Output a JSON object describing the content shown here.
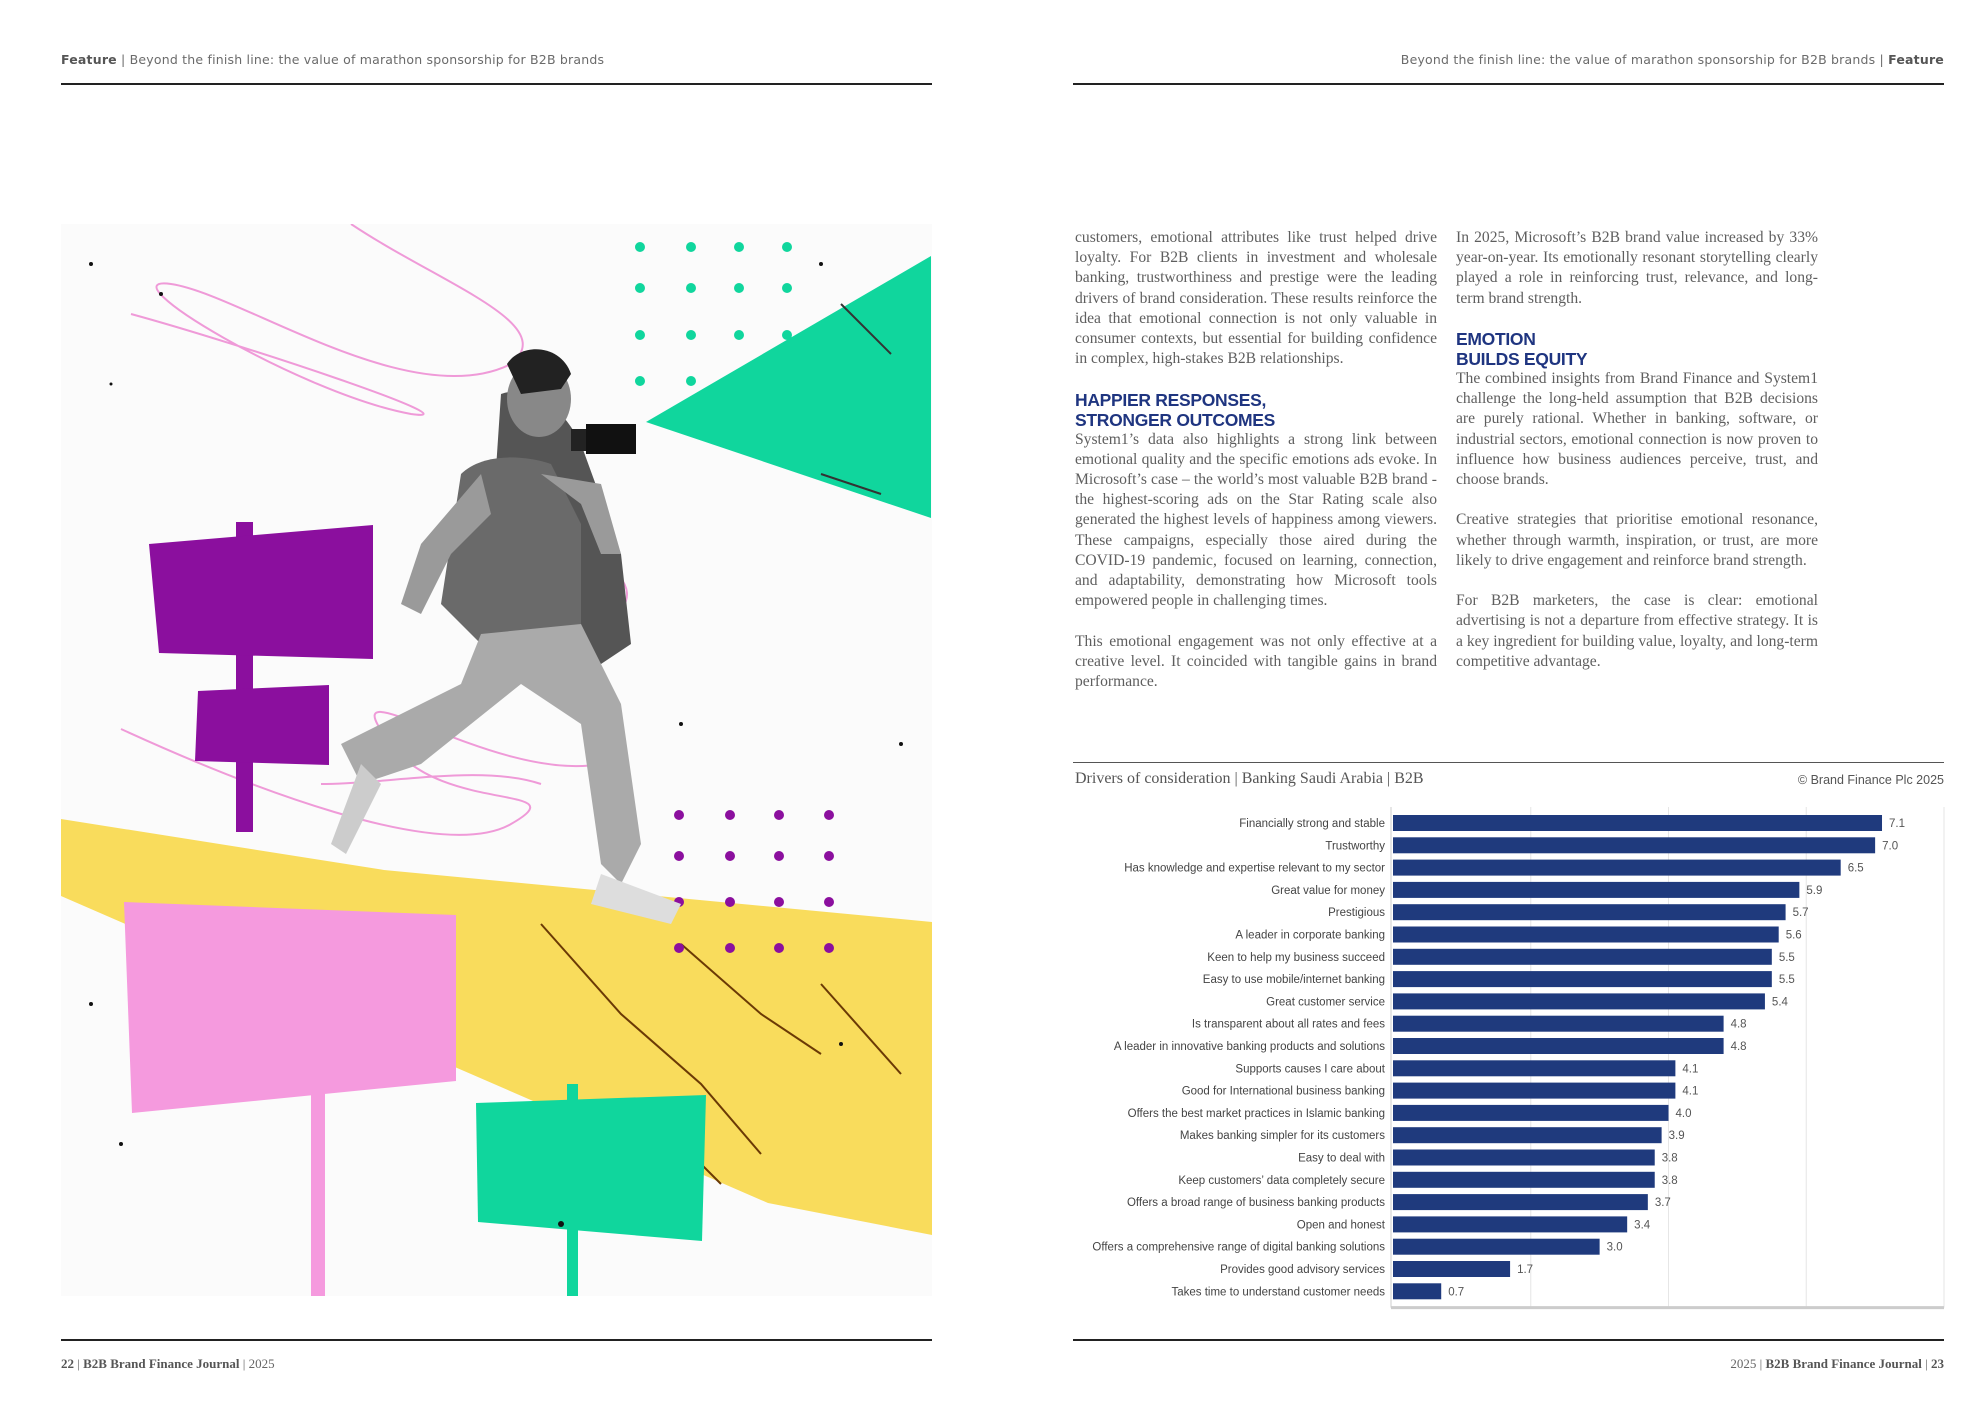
{
  "left_page": {
    "header": {
      "section": "Feature",
      "title": "Beyond the finish line: the value of marathon sponsorship for B2B brands"
    },
    "footer": {
      "page_number": "22",
      "journal": "B2B Brand Finance Journal",
      "year": "2025"
    }
  },
  "right_page": {
    "header": {
      "section": "Feature",
      "title": "Beyond the finish line: the value of marathon sponsorship for B2B brands"
    },
    "footer": {
      "page_number": "23",
      "journal": "B2B Brand Finance Journal",
      "year": "2025"
    },
    "column1": {
      "p1": "customers, emotional attributes like trust helped drive loyalty. For B2B clients in investment and wholesale banking, trustworthiness and prestige were the leading drivers of brand consideration. These results reinforce the idea that emotional connection is not only valuable in consumer contexts, but essential for building confidence in complex, high-stakes B2B relationships.",
      "h1_line1": "HAPPIER RESPONSES,",
      "h1_line2": "STRONGER OUTCOMES",
      "p2": "System1’s data also highlights a strong link between emotional quality and the specific emotions ads evoke. In Microsoft’s case – the world’s most valuable B2B brand - the highest-scoring ads on the Star Rating scale also generated the highest levels of happiness among viewers. These campaigns, especially those aired during the COVID-19 pandemic, focused on learning, connection, and adaptability, demonstrating how Microsoft tools empowered people in challenging times.",
      "p3": "This emotional engagement was not only effective at a creative level. It coincided with tangible gains in brand performance."
    },
    "column2": {
      "p1": "In 2025, Microsoft’s B2B brand value increased by 33% year-on-year. Its emotionally resonant storytelling clearly played a role in reinforcing trust, relevance, and long-term brand strength.",
      "h1_line1": "EMOTION",
      "h1_line2": "BUILDS EQUITY",
      "p2": "The combined insights from Brand Finance and System1 challenge the long-held assumption that B2B decisions are purely rational. Whether in banking, software, or industrial sectors, emotional connection is now proven to influence how business audiences perceive, trust, and choose brands.",
      "p3": "Creative strategies that prioritise emotional resonance, whether through warmth, inspiration, or trust, are more likely to drive engagement and reinforce brand strength.",
      "p4": "For B2B marketers, the case is clear: emotional advertising is not a departure from effective strategy. It is a key ingredient for building value, loyalty, and long-term competitive advantage."
    },
    "chart_copyright": "© Brand Finance Plc 2025"
  },
  "colors": {
    "bar": "#1f3a7d",
    "heading": "#1f3580",
    "green": "#10d69d",
    "purple": "#8b0f9e",
    "pink": "#f59ade",
    "yellow": "#f9dc5c"
  },
  "chart_data": {
    "type": "bar",
    "orientation": "horizontal",
    "title": "Drivers of consideration | Banking Saudi Arabia | B2B",
    "categories": [
      "Financially strong and stable",
      "Trustworthy",
      "Has knowledge and expertise relevant to my sector",
      "Great value for money",
      "Prestigious",
      "A leader in corporate banking",
      "Keen to help my  business succeed",
      "Easy to use mobile/internet banking",
      "Great customer service",
      "Is transparent about all rates and fees",
      "A leader in innovative banking products and solutions",
      "Supports causes I care about",
      "Good for International business banking",
      "Offers the best market practices in Islamic banking",
      "Makes banking simpler for its customers",
      "Easy to deal with",
      "Keep customers’ data completely secure",
      "Offers a broad range of business banking products",
      "Open and honest",
      "Offers a comprehensive range of digital banking solutions",
      "Provides good advisory services",
      "Takes time to understand customer needs"
    ],
    "values": [
      7.1,
      7.0,
      6.5,
      5.9,
      5.7,
      5.6,
      5.5,
      5.5,
      5.4,
      4.8,
      4.8,
      4.1,
      4.1,
      4.0,
      3.9,
      3.8,
      3.8,
      3.7,
      3.4,
      3.0,
      1.7,
      0.7
    ],
    "value_labels": [
      "7.1",
      "7.0",
      "6.5",
      "5.9",
      "5.7",
      "5.6",
      "5.5",
      "5.5",
      "5.4",
      "4.8",
      "4.8",
      "4.1",
      "4.1",
      "4.0",
      "3.9",
      "3.8",
      "3.8",
      "3.7",
      "3.4",
      "3.0",
      "1.7",
      "0.7"
    ],
    "xlim": [
      0,
      8
    ],
    "xticks": [
      "2",
      "4",
      "6",
      "8"
    ],
    "grid": true,
    "xlabel": "",
    "ylabel": ""
  }
}
